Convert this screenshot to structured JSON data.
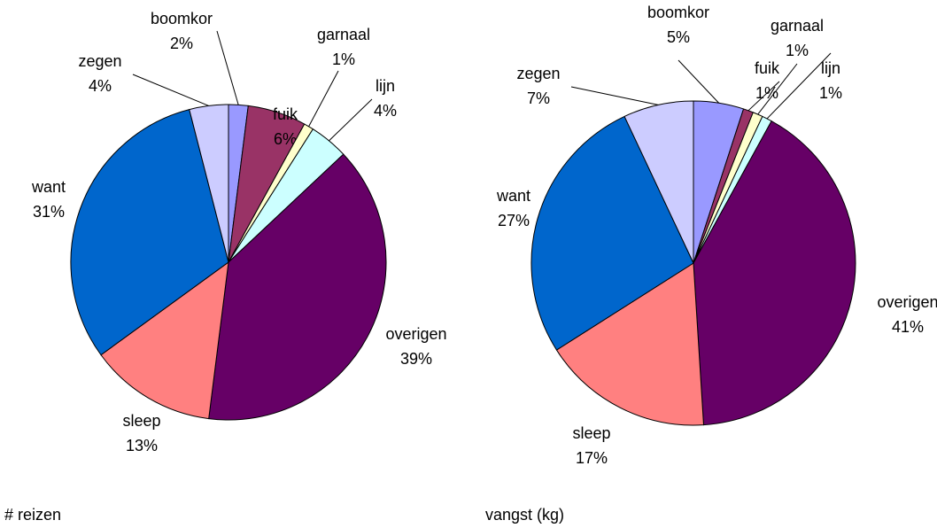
{
  "chart_data": [
    {
      "type": "pie",
      "title": "# reizen",
      "categories": [
        "boomkor",
        "fuik",
        "garnaal",
        "lijn",
        "overigen",
        "sleep",
        "want",
        "zegen"
      ],
      "values": [
        2,
        6,
        1,
        4,
        39,
        13,
        31,
        4
      ],
      "value_labels": [
        "2%",
        "6%",
        "1%",
        "4%",
        "39%",
        "13%",
        "31%",
        "4%"
      ],
      "colors": [
        "#9999ff",
        "#993366",
        "#ffffcc",
        "#ccffff",
        "#660066",
        "#ff8080",
        "#0066cc",
        "#ccccff"
      ]
    },
    {
      "type": "pie",
      "title": "vangst (kg)",
      "categories": [
        "boomkor",
        "fuik",
        "garnaal",
        "lijn",
        "overigen",
        "sleep",
        "want",
        "zegen"
      ],
      "values": [
        5,
        1,
        1,
        1,
        41,
        17,
        27,
        7
      ],
      "value_labels": [
        "5%",
        "1%",
        "1%",
        "1%",
        "41%",
        "17%",
        "27%",
        "7%"
      ],
      "colors": [
        "#9999ff",
        "#993366",
        "#ffffcc",
        "#ccffff",
        "#660066",
        "#ff8080",
        "#0066cc",
        "#ccccff"
      ]
    }
  ]
}
